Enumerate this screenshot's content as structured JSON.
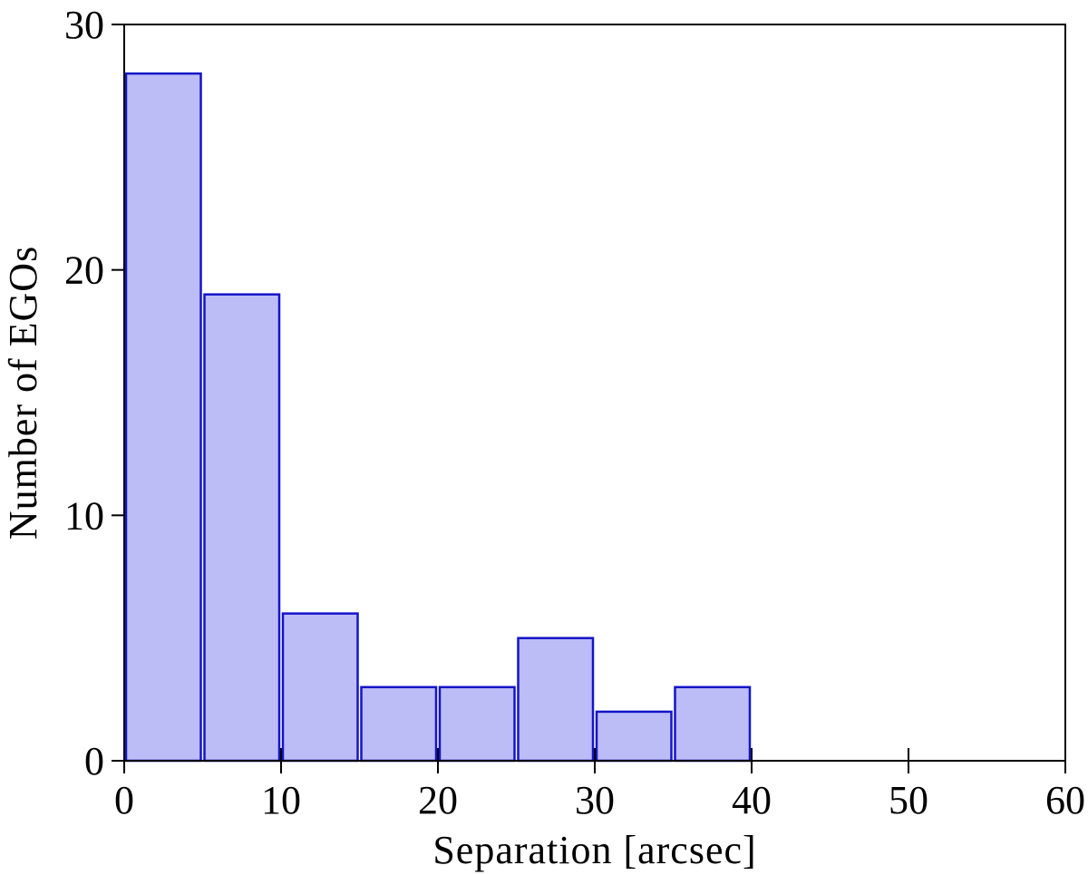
{
  "chart_data": {
    "type": "bar",
    "histogram": true,
    "bin_edges": [
      0,
      5,
      10,
      15,
      20,
      25,
      30,
      35,
      40
    ],
    "values": [
      28,
      19,
      6,
      3,
      3,
      5,
      2,
      3
    ],
    "title": "",
    "xlabel": "Separation [arcsec]",
    "ylabel": "Number of EGOs",
    "xlim": [
      0,
      60
    ],
    "ylim": [
      0,
      30
    ],
    "x_ticks": [
      "0",
      "10",
      "20",
      "30",
      "40",
      "50",
      "60"
    ],
    "y_ticks": [
      "0",
      "10",
      "20",
      "30"
    ],
    "grid": false,
    "legend": "none",
    "colors": {
      "bar_fill": "#bcbcf7",
      "bar_edge": "#1414c8",
      "axis": "#000000"
    }
  }
}
